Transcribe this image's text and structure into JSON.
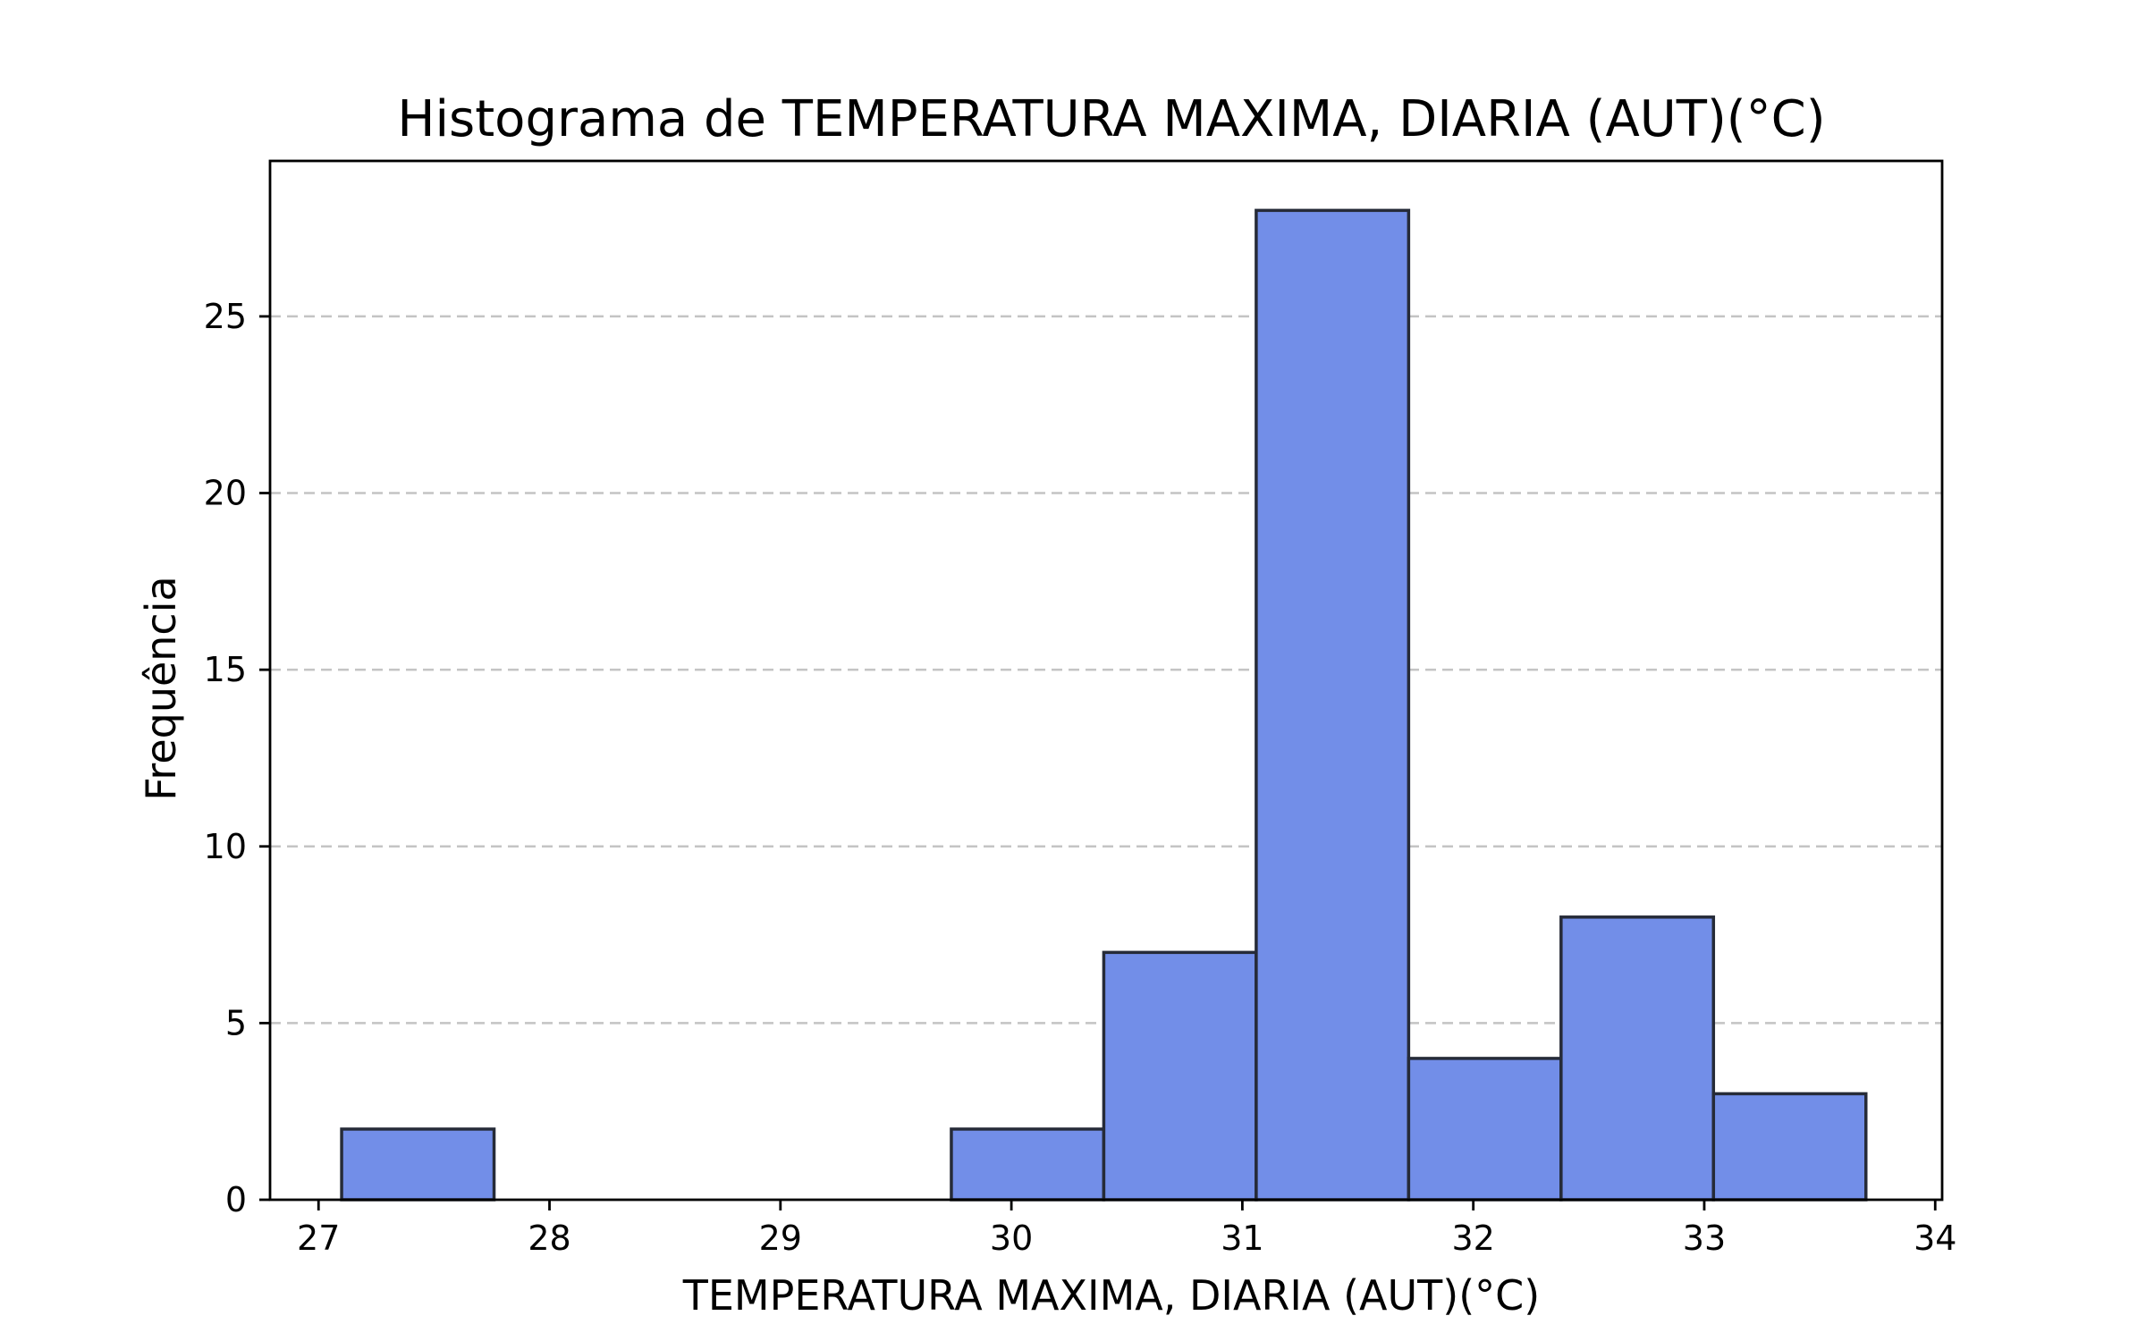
{
  "chart_data": {
    "type": "bar",
    "title": "Histograma de TEMPERATURA MAXIMA, DIARIA (AUT)(°C)",
    "xlabel": "TEMPERATURA MAXIMA, DIARIA (AUT)(°C)",
    "ylabel": "Frequência",
    "xlim": [
      26.79,
      34.03
    ],
    "ylim": [
      0,
      29.4
    ],
    "xticks": [
      27,
      28,
      29,
      30,
      31,
      32,
      33,
      34
    ],
    "yticks": [
      0,
      5,
      10,
      15,
      20,
      25
    ],
    "grid": "y-dashed",
    "bins": [
      {
        "start": 27.1,
        "end": 27.76,
        "count": 2
      },
      {
        "start": 27.76,
        "end": 28.42,
        "count": 0
      },
      {
        "start": 28.42,
        "end": 29.08,
        "count": 0
      },
      {
        "start": 29.08,
        "end": 29.74,
        "count": 0
      },
      {
        "start": 29.74,
        "end": 30.4,
        "count": 2
      },
      {
        "start": 30.4,
        "end": 31.06,
        "count": 7
      },
      {
        "start": 31.06,
        "end": 31.72,
        "count": 28
      },
      {
        "start": 31.72,
        "end": 32.38,
        "count": 4
      },
      {
        "start": 32.38,
        "end": 33.04,
        "count": 8
      },
      {
        "start": 33.04,
        "end": 33.7,
        "count": 3
      }
    ],
    "colors": {
      "bar_fill": "#728ee8",
      "bar_edge": "#262b38",
      "grid": "#c4c4c4"
    }
  }
}
